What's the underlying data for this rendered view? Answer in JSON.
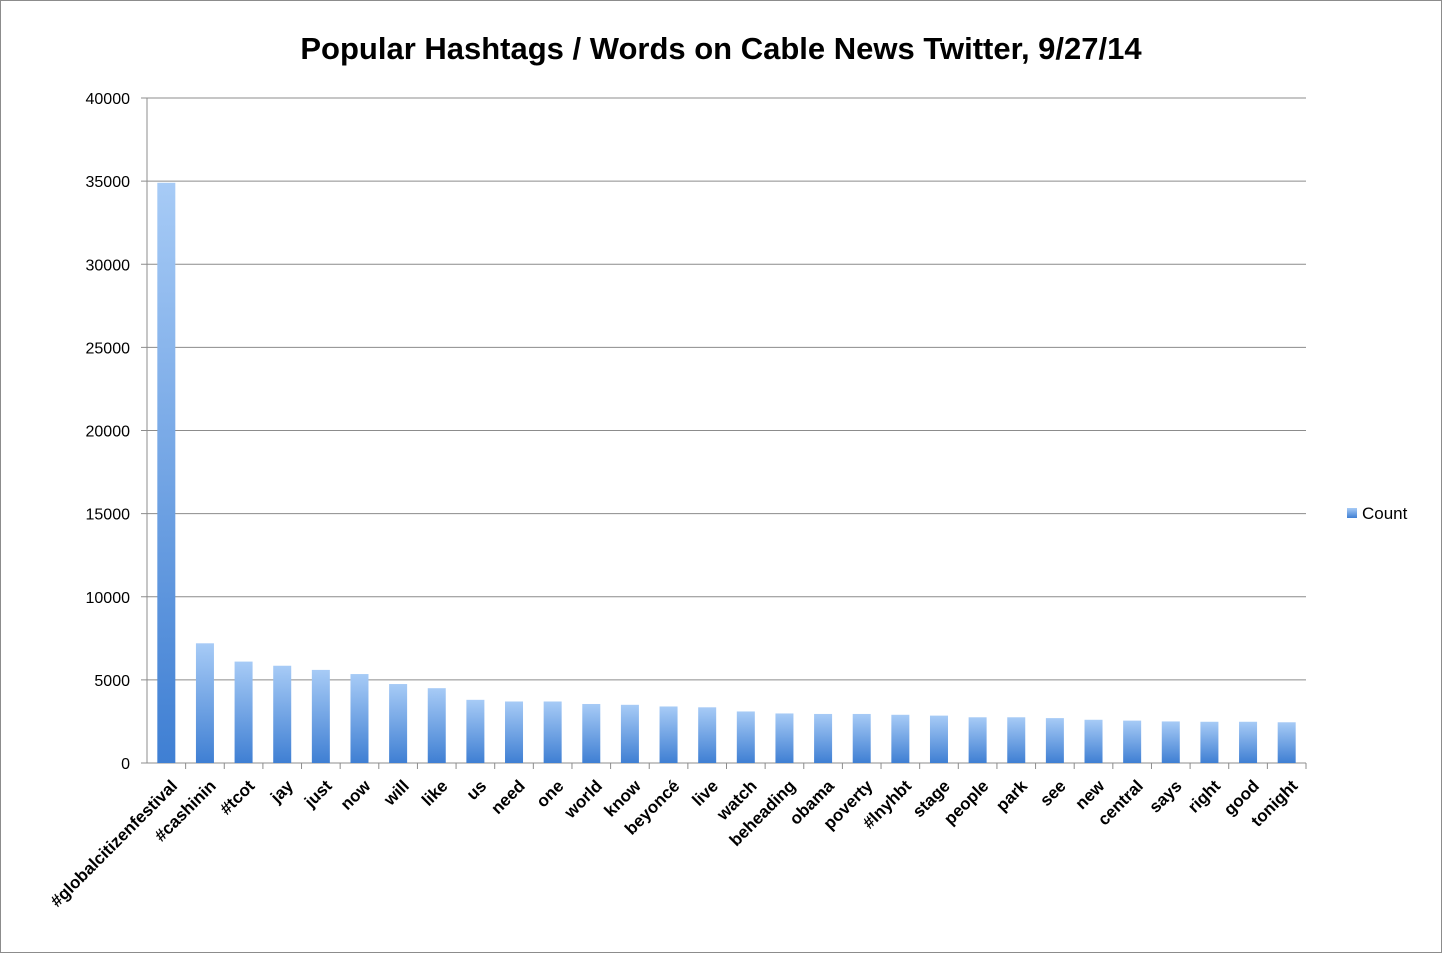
{
  "chart_data": {
    "type": "bar",
    "title": "Popular Hashtags / Words on Cable News Twitter, 9/27/14",
    "xlabel": "",
    "ylabel": "",
    "ylim": [
      0,
      40000
    ],
    "yticks": [
      0,
      5000,
      10000,
      15000,
      20000,
      25000,
      30000,
      35000,
      40000
    ],
    "ytick_labels": [
      "0",
      "5000",
      "10000",
      "15000",
      "20000",
      "25000",
      "30000",
      "35000",
      "40000"
    ],
    "grid": true,
    "legend_position": "right",
    "categories": [
      "#globalcitizenfestival",
      "#cashinin",
      "#tcot",
      "jay",
      "just",
      "now",
      "will",
      "like",
      "us",
      "need",
      "one",
      "world",
      "know",
      "beyoncé",
      "live",
      "watch",
      "beheading",
      "obama",
      "poverty",
      "#lnyhbt",
      "stage",
      "people",
      "park",
      "see",
      "new",
      "central",
      "says",
      "right",
      "good",
      "tonight"
    ],
    "series": [
      {
        "name": "Count",
        "color": "#5b9bd5",
        "values": [
          34900,
          7200,
          6100,
          5850,
          5600,
          5350,
          4750,
          4500,
          3800,
          3700,
          3700,
          3550,
          3500,
          3400,
          3350,
          3100,
          2980,
          2950,
          2950,
          2900,
          2850,
          2750,
          2750,
          2700,
          2600,
          2550,
          2500,
          2480,
          2480,
          2450
        ]
      }
    ]
  }
}
